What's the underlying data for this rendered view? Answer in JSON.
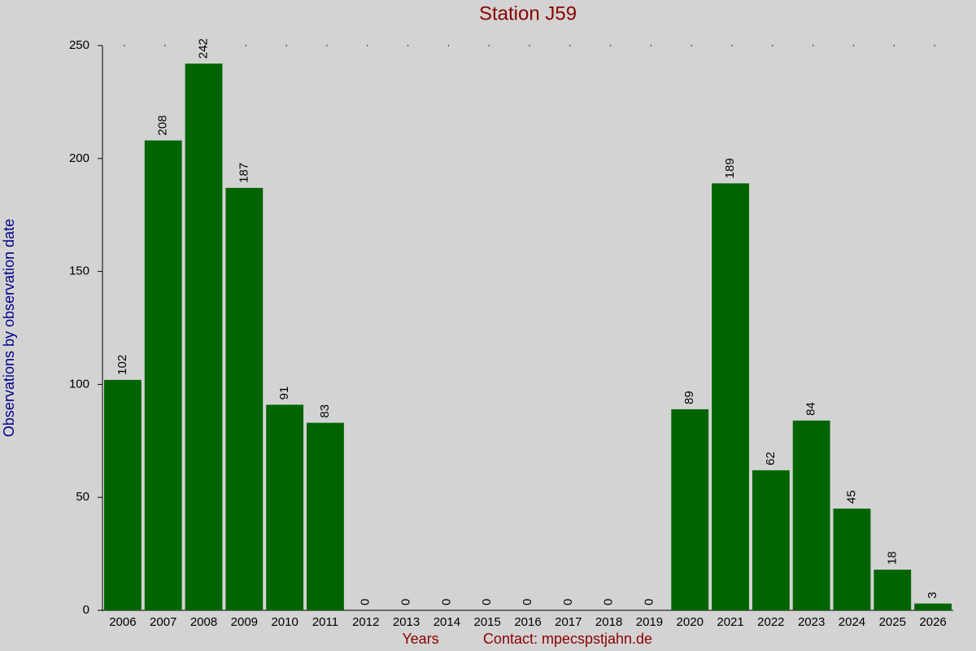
{
  "chart_data": {
    "type": "bar",
    "title": "Station J59",
    "y_label": "Observations by observation date",
    "x_label": "Years",
    "contact": "Contact: mpecspstjahn.de",
    "categories": [
      "2006",
      "2007",
      "2008",
      "2009",
      "2010",
      "2011",
      "2012",
      "2013",
      "2014",
      "2015",
      "2016",
      "2017",
      "2018",
      "2019",
      "2020",
      "2021",
      "2022",
      "2023",
      "2024",
      "2025",
      "2026"
    ],
    "values": [
      102,
      208,
      242,
      187,
      91,
      83,
      0,
      0,
      0,
      0,
      0,
      0,
      0,
      0,
      89,
      189,
      62,
      84,
      45,
      18,
      3
    ],
    "color": "#006400",
    "ylim": [
      0,
      250
    ],
    "yticks": [
      0,
      50,
      100,
      150,
      200,
      250
    ],
    "grid": false
  }
}
